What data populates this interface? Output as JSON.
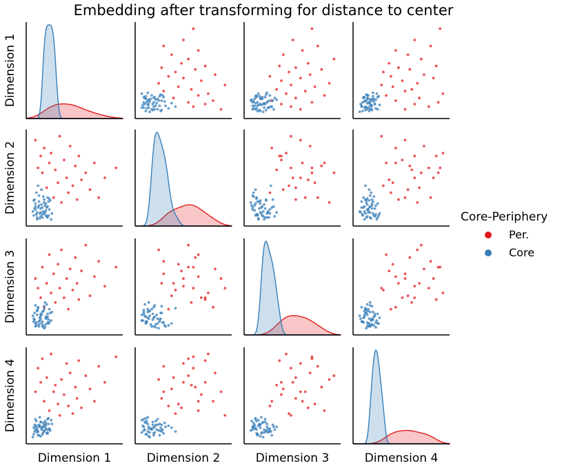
{
  "chart_data": {
    "type": "scatter",
    "title": "Embedding after transforming for distance to center",
    "dimensions": [
      "Dimension 1",
      "Dimension 2",
      "Dimension 3",
      "Dimension 4"
    ],
    "diagonal_type": "kde",
    "ticks_shown": false,
    "grid": false,
    "legend": {
      "title": "Core-Periphery",
      "position": "right",
      "entries": [
        {
          "name": "Per.",
          "color": "#e41a1c"
        },
        {
          "name": "Core",
          "color": "#377eb8"
        }
      ]
    },
    "series": [
      {
        "name": "Per.",
        "color": "#e41a1c",
        "points": [
          [
            0.12,
            0.88,
            0.6,
            0.55
          ],
          [
            0.15,
            0.6,
            0.5,
            0.8
          ],
          [
            0.18,
            0.72,
            0.4,
            0.65
          ],
          [
            0.2,
            0.55,
            0.72,
            0.9
          ],
          [
            0.22,
            0.8,
            0.3,
            0.45
          ],
          [
            0.25,
            0.4,
            0.55,
            0.7
          ],
          [
            0.28,
            0.65,
            0.85,
            0.35
          ],
          [
            0.3,
            0.75,
            0.45,
            0.95
          ],
          [
            0.33,
            0.3,
            0.65,
            0.55
          ],
          [
            0.35,
            0.58,
            0.35,
            0.62
          ],
          [
            0.38,
            0.45,
            0.75,
            0.42
          ],
          [
            0.4,
            0.92,
            0.5,
            0.3
          ],
          [
            0.42,
            0.25,
            0.9,
            0.68
          ],
          [
            0.45,
            0.68,
            0.4,
            0.52
          ],
          [
            0.48,
            0.5,
            0.6,
            0.85
          ],
          [
            0.5,
            0.35,
            0.28,
            0.4
          ],
          [
            0.52,
            0.82,
            0.7,
            0.75
          ],
          [
            0.55,
            0.42,
            0.48,
            0.32
          ],
          [
            0.58,
            0.62,
            0.82,
            0.6
          ],
          [
            0.6,
            0.28,
            0.55,
            0.48
          ],
          [
            0.62,
            0.72,
            0.38,
            0.88
          ],
          [
            0.65,
            0.48,
            0.68,
            0.38
          ],
          [
            0.7,
            0.55,
            0.95,
            0.72
          ],
          [
            0.75,
            0.38,
            0.42,
            0.58
          ],
          [
            0.8,
            0.65,
            0.62,
            0.45
          ],
          [
            0.85,
            0.3,
            0.78,
            0.82
          ],
          [
            0.92,
            0.5,
            0.52,
            0.65
          ],
          [
            1.05,
            0.6,
            0.72,
            0.92
          ]
        ]
      },
      {
        "name": "Core",
        "color": "#377eb8",
        "points": [
          [
            0.1,
            0.12,
            0.15,
            0.1
          ],
          [
            0.12,
            0.18,
            0.1,
            0.15
          ],
          [
            0.14,
            0.08,
            0.22,
            0.12
          ],
          [
            0.16,
            0.22,
            0.12,
            0.2
          ],
          [
            0.18,
            0.15,
            0.18,
            0.08
          ],
          [
            0.2,
            0.1,
            0.25,
            0.18
          ],
          [
            0.22,
            0.25,
            0.08,
            0.14
          ],
          [
            0.24,
            0.12,
            0.2,
            0.22
          ],
          [
            0.26,
            0.3,
            0.14,
            0.11
          ],
          [
            0.28,
            0.18,
            0.28,
            0.16
          ],
          [
            0.3,
            0.08,
            0.16,
            0.25
          ],
          [
            0.11,
            0.28,
            0.24,
            0.13
          ],
          [
            0.13,
            0.35,
            0.11,
            0.19
          ],
          [
            0.15,
            0.2,
            0.3,
            0.09
          ],
          [
            0.17,
            0.14,
            0.19,
            0.28
          ],
          [
            0.19,
            0.38,
            0.13,
            0.17
          ],
          [
            0.21,
            0.16,
            0.26,
            0.12
          ],
          [
            0.23,
            0.22,
            0.09,
            0.24
          ],
          [
            0.25,
            0.11,
            0.33,
            0.15
          ],
          [
            0.27,
            0.26,
            0.17,
            0.21
          ],
          [
            0.09,
            0.16,
            0.21,
            0.07
          ],
          [
            0.12,
            0.24,
            0.13,
            0.26
          ],
          [
            0.14,
            0.1,
            0.27,
            0.14
          ],
          [
            0.16,
            0.32,
            0.1,
            0.18
          ],
          [
            0.18,
            0.19,
            0.23,
            0.23
          ],
          [
            0.2,
            0.13,
            0.15,
            0.1
          ],
          [
            0.22,
            0.28,
            0.31,
            0.2
          ],
          [
            0.24,
            0.17,
            0.12,
            0.16
          ],
          [
            0.26,
            0.21,
            0.2,
            0.12
          ],
          [
            0.31,
            0.14,
            0.25,
            0.21
          ],
          [
            0.1,
            0.27,
            0.18,
            0.17
          ],
          [
            0.13,
            0.13,
            0.14,
            0.24
          ],
          [
            0.15,
            0.42,
            0.29,
            0.13
          ],
          [
            0.17,
            0.09,
            0.16,
            0.19
          ],
          [
            0.19,
            0.23,
            0.22,
            0.15
          ],
          [
            0.21,
            0.31,
            0.11,
            0.22
          ],
          [
            0.23,
            0.15,
            0.35,
            0.18
          ],
          [
            0.25,
            0.2,
            0.19,
            0.11
          ],
          [
            0.27,
            0.12,
            0.13,
            0.27
          ],
          [
            0.29,
            0.27,
            0.24,
            0.14
          ],
          [
            0.11,
            0.19,
            0.17,
            0.2
          ],
          [
            0.14,
            0.15,
            0.26,
            0.16
          ],
          [
            0.16,
            0.26,
            0.15,
            0.09
          ],
          [
            0.18,
            0.11,
            0.21,
            0.23
          ],
          [
            0.2,
            0.2,
            0.1,
            0.17
          ],
          [
            0.22,
            0.14,
            0.28,
            0.13
          ],
          [
            0.24,
            0.24,
            0.18,
            0.2
          ],
          [
            0.26,
            0.1,
            0.23,
            0.26
          ],
          [
            0.28,
            0.29,
            0.14,
            0.15
          ],
          [
            0.12,
            0.21,
            0.32,
            0.18
          ]
        ]
      }
    ]
  }
}
